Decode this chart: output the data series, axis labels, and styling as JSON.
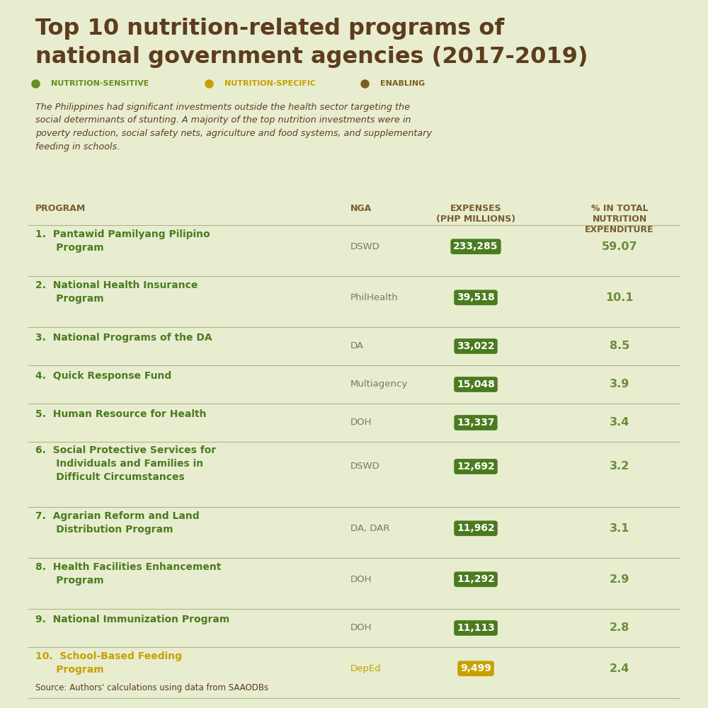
{
  "title_line1": "Top 10 nutrition-related programs of",
  "title_line2": "national government agencies (2017-2019)",
  "title_color": "#5C3D1E",
  "bg_color": "#E8EDD0",
  "legend": [
    {
      "label": "NUTRITION-SENSITIVE",
      "color": "#6B8C1E"
    },
    {
      "label": "NUTRITION-SPECIFIC",
      "color": "#C8A000"
    },
    {
      "label": "ENABLING",
      "color": "#7A6020"
    }
  ],
  "italic_text": "The Philippines had significant investments outside the health sector targeting the\nsocial determinants of stunting. A majority of the top nutrition investments were in\npoverty reduction, social safety nets, agriculture and food systems, and supplementary\nfeeding in schools.",
  "col_header_color": "#7A5C2E",
  "rows": [
    {
      "rank": "1.",
      "program": "Pantawid Pamilyang Pilipino\nProgram",
      "nga": "DSWD",
      "expenses": "233,285",
      "pct": "59.07",
      "badge_color": "#4A7C1F",
      "text_color": "#4A7C1F",
      "nga_color": "#7A7A5A"
    },
    {
      "rank": "2.",
      "program": "National Health Insurance\nProgram",
      "nga": "PhilHealth",
      "expenses": "39,518",
      "pct": "10.1",
      "badge_color": "#4A7C1F",
      "text_color": "#4A7C1F",
      "nga_color": "#7A7A5A"
    },
    {
      "rank": "3.",
      "program": "National Programs of the DA",
      "nga": "DA",
      "expenses": "33,022",
      "pct": "8.5",
      "badge_color": "#4A7C1F",
      "text_color": "#4A7C1F",
      "nga_color": "#7A7A5A"
    },
    {
      "rank": "4.",
      "program": "Quick Response Fund",
      "nga": "Multiagency",
      "expenses": "15,048",
      "pct": "3.9",
      "badge_color": "#4A7C1F",
      "text_color": "#4A7C1F",
      "nga_color": "#7A7A5A"
    },
    {
      "rank": "5.",
      "program": "Human Resource for Health",
      "nga": "DOH",
      "expenses": "13,337",
      "pct": "3.4",
      "badge_color": "#4A7C1F",
      "text_color": "#4A7C1F",
      "nga_color": "#7A7A5A"
    },
    {
      "rank": "6.",
      "program": "Social Protective Services for\nIndividuals and Families in\nDifficult Circumstances",
      "nga": "DSWD",
      "expenses": "12,692",
      "pct": "3.2",
      "badge_color": "#4A7C1F",
      "text_color": "#4A7C1F",
      "nga_color": "#7A7A5A"
    },
    {
      "rank": "7.",
      "program": "Agrarian Reform and Land\nDistribution Program",
      "nga": "DA, DAR",
      "expenses": "11,962",
      "pct": "3.1",
      "badge_color": "#4A7C1F",
      "text_color": "#4A7C1F",
      "nga_color": "#7A7A5A"
    },
    {
      "rank": "8.",
      "program": "Health Facilities Enhancement\nProgram",
      "nga": "DOH",
      "expenses": "11,292",
      "pct": "2.9",
      "badge_color": "#4A7C1F",
      "text_color": "#4A7C1F",
      "nga_color": "#7A7A5A"
    },
    {
      "rank": "9.",
      "program": "National Immunization Program",
      "nga": "DOH",
      "expenses": "11,113",
      "pct": "2.8",
      "badge_color": "#4A7C1F",
      "text_color": "#4A7C1F",
      "nga_color": "#7A7A5A"
    },
    {
      "rank": "10.",
      "program": "School-Based Feeding\nProgram",
      "nga": "DepEd",
      "expenses": "9,499",
      "pct": "2.4",
      "badge_color": "#C8A000",
      "text_color": "#C8A000",
      "nga_color": "#C8A000"
    }
  ],
  "source_text": "Source: Authors' calculations using data from SAAODBs",
  "divider_color": "#A0A878",
  "pct_color": "#6B8C3A"
}
